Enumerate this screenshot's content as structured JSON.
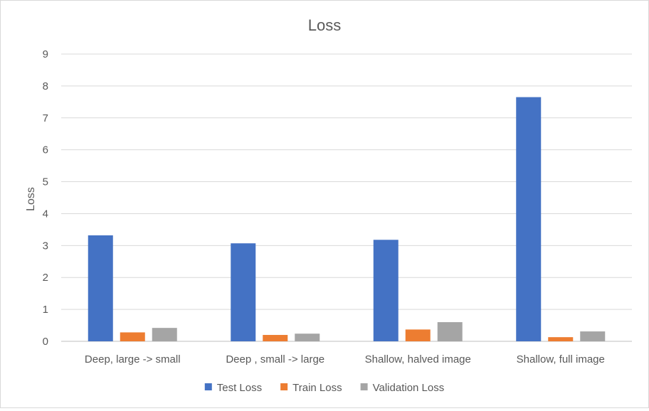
{
  "chart_data": {
    "type": "bar",
    "title": "Loss",
    "xlabel": "",
    "ylabel": "Loss",
    "ylim": [
      0,
      9
    ],
    "yticks": [
      "0",
      "1",
      "2",
      "3",
      "4",
      "5",
      "6",
      "7",
      "8",
      "9"
    ],
    "grid": true,
    "legend_position": "bottom",
    "categories": [
      "Deep, large -> small",
      "Deep , small -> large",
      "Shallow, halved image",
      "Shallow, full image"
    ],
    "series": [
      {
        "name": "Test Loss",
        "color": "#4472c4",
        "values": [
          3.32,
          3.07,
          3.18,
          7.65
        ]
      },
      {
        "name": "Train Loss",
        "color": "#ed7d31",
        "values": [
          0.28,
          0.2,
          0.37,
          0.13
        ]
      },
      {
        "name": "Validation Loss",
        "color": "#a5a5a5",
        "values": [
          0.42,
          0.24,
          0.6,
          0.31
        ]
      }
    ]
  }
}
